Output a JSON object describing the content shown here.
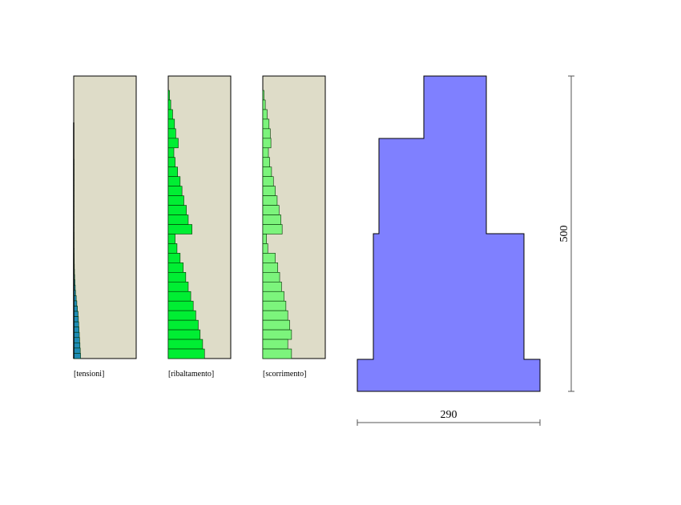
{
  "panels": {
    "tensioni": {
      "label": "[tensioni]",
      "fill": "#1e8bb4",
      "values": [
        0.0,
        0.0,
        0.0,
        0.0,
        0.0,
        0.0,
        0.0,
        0.005,
        0.005,
        0.005,
        0.005,
        0.005,
        0.005,
        0.005,
        0.005,
        0.005,
        0.005,
        0.005,
        0.005,
        0.005,
        0.005,
        0.006,
        0.006,
        0.006,
        0.007,
        0.008,
        0.009,
        0.01,
        0.012,
        0.015,
        0.02,
        0.025,
        0.03,
        0.04,
        0.05,
        0.06,
        0.07,
        0.075,
        0.08,
        0.085,
        0.09,
        0.095,
        0.1,
        0.105,
        0.11
      ]
    },
    "ribaltamento": {
      "label": "[ribaltamento]",
      "fill": "#00ee33",
      "values": [
        0.02,
        0.04,
        0.07,
        0.1,
        0.12,
        0.16,
        0.09,
        0.11,
        0.15,
        0.19,
        0.22,
        0.25,
        0.29,
        0.32,
        0.38,
        0.11,
        0.14,
        0.19,
        0.24,
        0.28,
        0.32,
        0.36,
        0.4,
        0.44,
        0.48,
        0.51,
        0.55,
        0.58
      ]
    },
    "scorrimento": {
      "label": "[scorrimento]",
      "fill": "#7cf47c",
      "values": [
        0.02,
        0.04,
        0.07,
        0.1,
        0.12,
        0.13,
        0.09,
        0.11,
        0.14,
        0.17,
        0.2,
        0.23,
        0.26,
        0.29,
        0.31,
        0.06,
        0.08,
        0.2,
        0.24,
        0.27,
        0.3,
        0.34,
        0.37,
        0.4,
        0.43,
        0.46,
        0.4,
        0.46
      ]
    },
    "panel_bg": "#dedcc8"
  },
  "section": {
    "fill": "#7f80ff",
    "width_label": "290",
    "height_label": "500"
  }
}
